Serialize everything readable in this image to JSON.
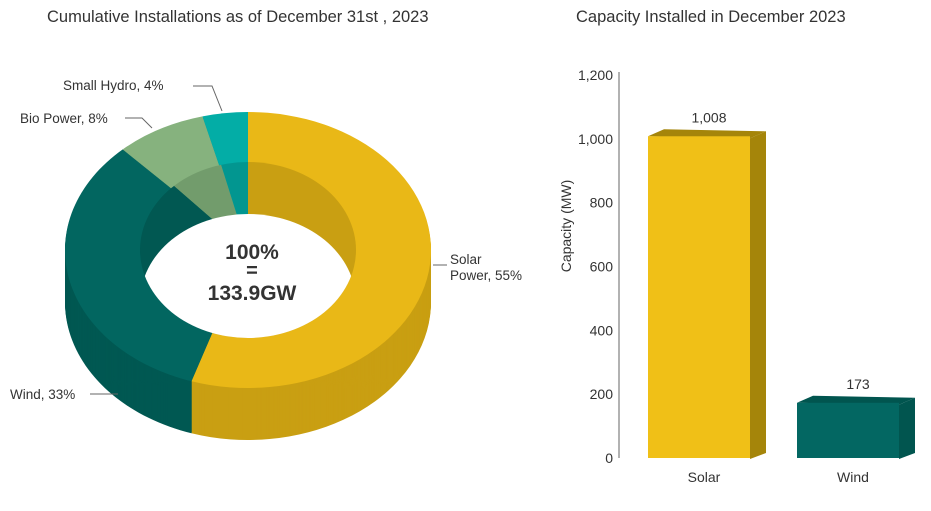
{
  "chart_data": [
    {
      "type": "pie",
      "title": "Cumulative Installations as of December 31st , 2023",
      "center_label": [
        "100%",
        "=",
        "133.9GW"
      ],
      "slices": [
        {
          "name": "Solar Power",
          "value": 55,
          "label_lines": [
            "Solar",
            "Power, 55%"
          ],
          "color": "#E9B817",
          "dark": "#C99F12"
        },
        {
          "name": "Wind",
          "value": 33,
          "label_lines": [
            "Wind, 33%"
          ],
          "color": "#026660",
          "dark": "#015852"
        },
        {
          "name": "Bio Power",
          "value": 8,
          "label_lines": [
            "Bio Power, 8%"
          ],
          "color": "#86B27E",
          "dark": "#729C6C"
        },
        {
          "name": "Small Hydro",
          "value": 4,
          "label_lines": [
            "Small Hydro, 4%"
          ],
          "color": "#03ADA6",
          "dark": "#029690"
        }
      ]
    },
    {
      "type": "bar",
      "title": "Capacity Installed in December 2023",
      "categories": [
        "Solar",
        "Wind"
      ],
      "values": [
        1008,
        173
      ],
      "value_labels": [
        "1,008",
        "173"
      ],
      "colors": [
        "#F0C017",
        "#036762"
      ],
      "side_colors": [
        "#A5850A",
        "#01554F"
      ],
      "xlabel": "",
      "ylabel": "Capacity (MW)",
      "ylim": [
        0,
        1200
      ],
      "yticks": [
        0,
        200,
        400,
        600,
        800,
        1000,
        1200
      ],
      "ytick_labels": [
        "0",
        "200",
        "400",
        "600",
        "800",
        "1,000",
        "1,200"
      ]
    }
  ]
}
